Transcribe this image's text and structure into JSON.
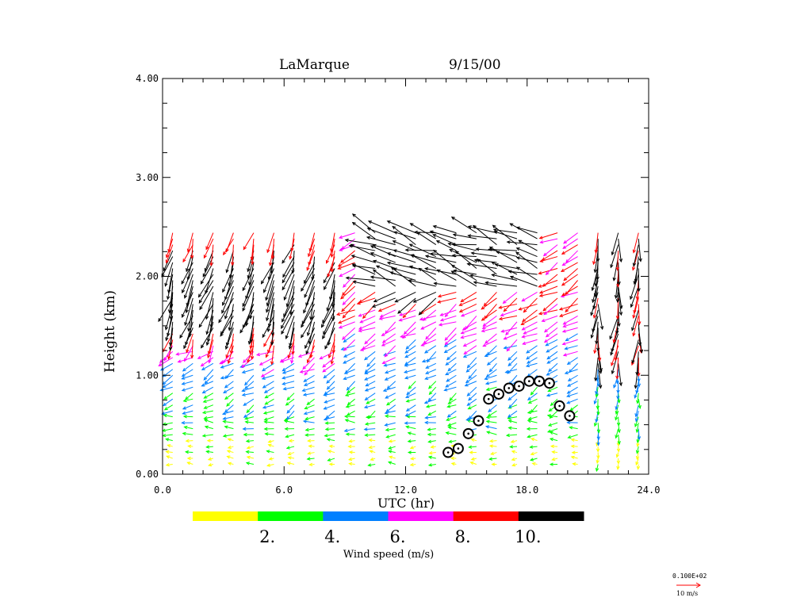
{
  "chart_data": {
    "type": "wind_profile",
    "title": "LaMarque",
    "date": "9/15/00",
    "xlabel": "UTC (hr)",
    "ylabel": "Height (km)",
    "xlim": [
      0,
      24
    ],
    "ylim": [
      0,
      4
    ],
    "xticks": [
      "0.0",
      "6.0",
      "12.0",
      "18.0",
      "24.0"
    ],
    "xtick_values": [
      0,
      6,
      12,
      18,
      24
    ],
    "yticks": [
      "0.00",
      "1.00",
      "2.00",
      "3.00",
      "4.00"
    ],
    "ytick_values": [
      0,
      1,
      2,
      3,
      4
    ],
    "profile_times": [
      0.5,
      1.5,
      2.5,
      3.5,
      4.5,
      5.5,
      6.5,
      7.5,
      8.5,
      9.5,
      10.5,
      11.5,
      12.5,
      13.5,
      14.5,
      15.5,
      16.5,
      17.5,
      18.5,
      19.5,
      20.5,
      21.5,
      22.5,
      23.5
    ],
    "profile_height_range_km": [
      0.1,
      2.45
    ],
    "mixing_height": {
      "t": [
        14.1,
        14.6,
        15.1,
        15.6,
        16.1,
        16.6,
        17.1,
        17.6,
        18.1,
        18.6,
        19.1,
        19.6,
        20.1
      ],
      "h": [
        0.22,
        0.26,
        0.41,
        0.54,
        0.76,
        0.81,
        0.87,
        0.89,
        0.94,
        0.94,
        0.92,
        0.69,
        0.59
      ]
    },
    "colorbar": {
      "title": "Wind speed (m/s)",
      "colors": [
        "#ffff00",
        "#00ff00",
        "#0080ff",
        "#ff00ff",
        "#ff0000",
        "#000000"
      ],
      "labels": [
        "2.",
        "4.",
        "6.",
        "8.",
        "10."
      ],
      "bounds": [
        0,
        2,
        4,
        6,
        8,
        10,
        12
      ]
    },
    "reference_vector": {
      "value_label": "0.100E+02",
      "unit_label": "10 m/s",
      "color": "#ff0000"
    }
  }
}
